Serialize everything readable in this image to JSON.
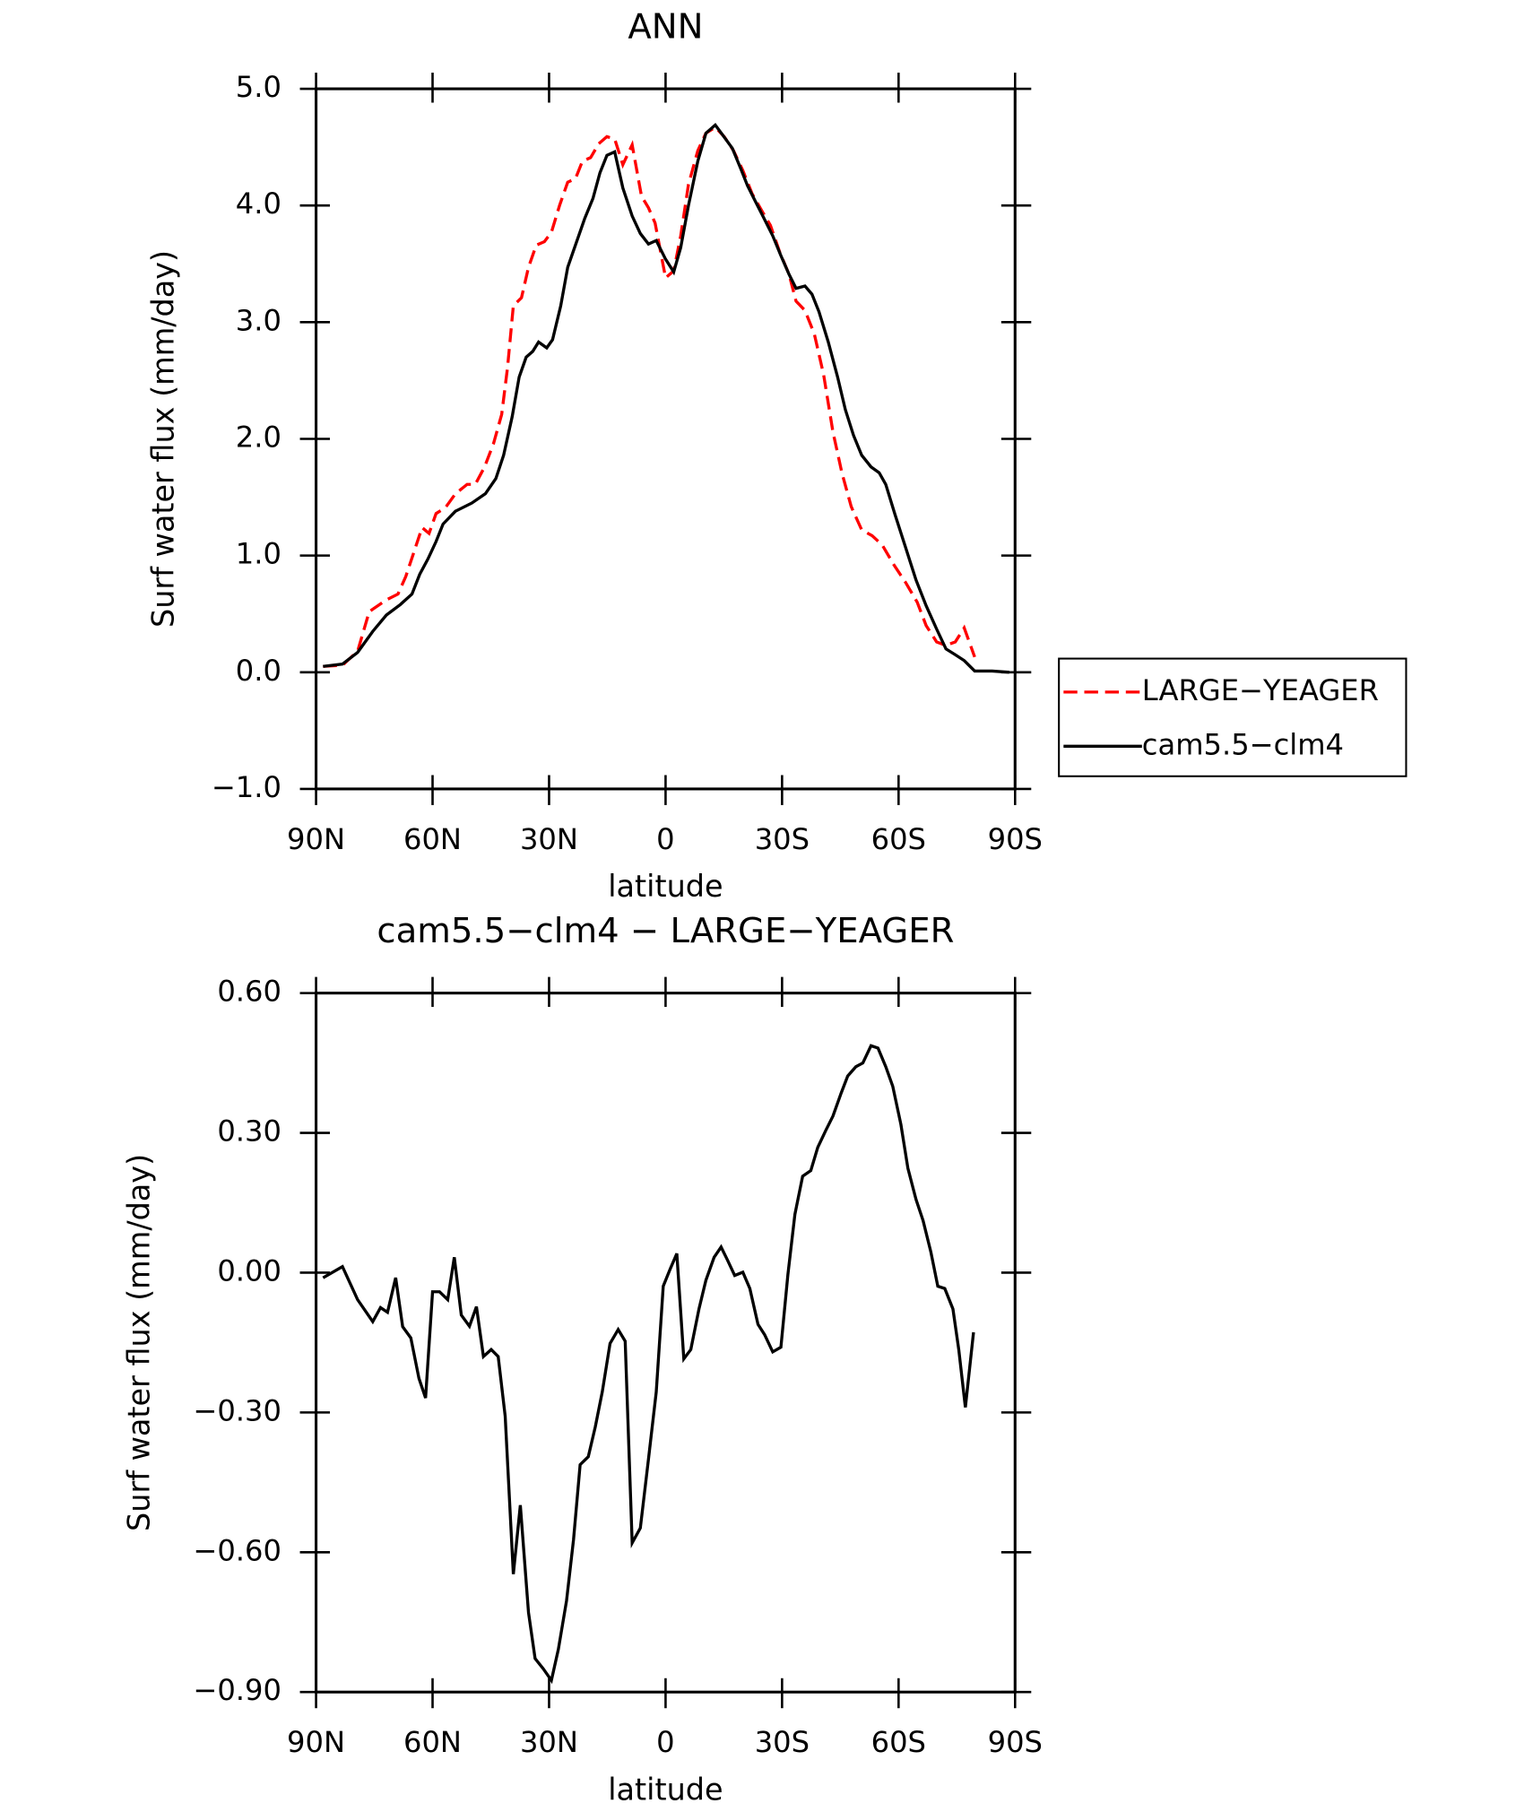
{
  "chart_data": [
    {
      "type": "line",
      "title": "ANN",
      "xlabel": "latitude",
      "ylabel": "Surf water flux (mm/day)",
      "xlim": [
        90,
        -90
      ],
      "xticks": [
        {
          "value": 90,
          "label": "90N"
        },
        {
          "value": 60,
          "label": "60N"
        },
        {
          "value": 30,
          "label": "30N"
        },
        0,
        {
          "value": -30,
          "label": "30S"
        },
        {
          "value": -60,
          "label": "60S"
        },
        {
          "value": -90,
          "label": "90S"
        }
      ],
      "ylim": [
        -1,
        5
      ],
      "yticks": [
        {
          "value": -1,
          "label": "−1.0"
        },
        {
          "value": 0,
          "label": "0.0"
        },
        {
          "value": 1,
          "label": "1.0"
        },
        {
          "value": 2,
          "label": "2.0"
        },
        {
          "value": 3,
          "label": "3.0"
        },
        {
          "value": 4,
          "label": "4.0"
        },
        {
          "value": 5,
          "label": "5.0"
        }
      ],
      "legend": "right",
      "series": [
        {
          "name": "LARGE−YEAGER",
          "color": "#ff0000",
          "dashed": true,
          "x": [
            88.2,
            83.2,
            79.3,
            76.3,
            71.9,
            68.9,
            66.9,
            65.0,
            62.7,
            60.9,
            59.1,
            56.7,
            54.1,
            51.1,
            49.0,
            46.6,
            44.3,
            42.2,
            40.7,
            39.2,
            37.1,
            35.3,
            33.3,
            31.2,
            29.4,
            27.3,
            25.2,
            23.2,
            21.4,
            19.3,
            17.2,
            15.1,
            13.1,
            11.0,
            8.6,
            6.2,
            4.4,
            2.7,
            0,
            -2.1,
            -3.9,
            -5.9,
            -8.3,
            -10.4,
            -12.8,
            -15.1,
            -17.5,
            -19.9,
            -22.3,
            -24.7,
            -27.0,
            -29.4,
            -31.8,
            -33.6,
            -35.9,
            -38.3,
            -40.7,
            -43.1,
            -45.4,
            -47.8,
            -50.5,
            -53.2,
            -55.8,
            -58.8,
            -61.8,
            -64.8,
            -67.1,
            -69.8,
            -72.2,
            -74.6,
            -76.9,
            -79.6
          ],
          "values": [
            0.05,
            0.06,
            0.18,
            0.52,
            0.62,
            0.67,
            0.82,
            1.01,
            1.24,
            1.19,
            1.36,
            1.41,
            1.53,
            1.61,
            1.61,
            1.76,
            1.96,
            2.21,
            2.61,
            3.14,
            3.21,
            3.47,
            3.66,
            3.69,
            3.77,
            4.0,
            4.2,
            4.23,
            4.38,
            4.41,
            4.53,
            4.59,
            4.57,
            4.35,
            4.52,
            4.08,
            3.98,
            3.85,
            3.38,
            3.44,
            3.74,
            4.18,
            4.47,
            4.62,
            4.67,
            4.59,
            4.47,
            4.3,
            4.1,
            3.96,
            3.83,
            3.6,
            3.41,
            3.18,
            3.1,
            2.9,
            2.55,
            2.06,
            1.71,
            1.42,
            1.22,
            1.17,
            1.09,
            0.92,
            0.77,
            0.6,
            0.4,
            0.26,
            0.23,
            0.26,
            0.38,
            0.13
          ]
        },
        {
          "name": "cam5.5−clm4",
          "color": "#000000",
          "dashed": false,
          "x": [
            88.2,
            83.2,
            79.3,
            75.4,
            71.9,
            68.3,
            65.3,
            63.3,
            61.2,
            59.1,
            57.3,
            54.1,
            49.9,
            46.4,
            43.7,
            41.7,
            39.5,
            37.7,
            35.9,
            34.2,
            32.7,
            30.6,
            29.1,
            27.0,
            25.2,
            22.9,
            20.8,
            18.7,
            16.9,
            15.1,
            13.1,
            11.0,
            8.6,
            6.5,
            4.4,
            2.4,
            0,
            -2.1,
            -3.9,
            -5.9,
            -8.3,
            -10.4,
            -12.8,
            -14.8,
            -17.2,
            -19.3,
            -21.1,
            -23.2,
            -25.2,
            -27.6,
            -29.7,
            -31.8,
            -33.6,
            -35.9,
            -37.7,
            -39.5,
            -41.9,
            -44.3,
            -46.3,
            -48.4,
            -50.5,
            -52.9,
            -55.0,
            -56.7,
            -59.1,
            -61.8,
            -64.5,
            -67.1,
            -69.8,
            -72.2,
            -74.6,
            -76.9,
            -79.6,
            -84.1,
            -88.5
          ],
          "values": [
            0.05,
            0.07,
            0.17,
            0.35,
            0.49,
            0.58,
            0.67,
            0.84,
            0.97,
            1.12,
            1.27,
            1.38,
            1.45,
            1.53,
            1.66,
            1.86,
            2.19,
            2.53,
            2.7,
            2.75,
            2.83,
            2.78,
            2.85,
            3.14,
            3.47,
            3.69,
            3.89,
            4.06,
            4.28,
            4.43,
            4.46,
            4.15,
            3.91,
            3.76,
            3.67,
            3.7,
            3.54,
            3.43,
            3.64,
            4.0,
            4.38,
            4.62,
            4.69,
            4.6,
            4.49,
            4.32,
            4.17,
            4.03,
            3.9,
            3.74,
            3.57,
            3.41,
            3.29,
            3.31,
            3.24,
            3.09,
            2.83,
            2.53,
            2.25,
            2.03,
            1.86,
            1.76,
            1.71,
            1.61,
            1.35,
            1.07,
            0.79,
            0.57,
            0.37,
            0.2,
            0.15,
            0.1,
            0.01,
            0.01,
            0.0
          ]
        }
      ]
    },
    {
      "type": "line",
      "title": "cam5.5−clm4 − LARGE−YEAGER",
      "xlabel": "latitude",
      "ylabel": "Surf water flux (mm/day)",
      "xlim": [
        90,
        -90
      ],
      "xticks": [
        {
          "value": 90,
          "label": "90N"
        },
        {
          "value": 60,
          "label": "60N"
        },
        {
          "value": 30,
          "label": "30N"
        },
        0,
        {
          "value": -30,
          "label": "30S"
        },
        {
          "value": -60,
          "label": "60S"
        },
        {
          "value": -90,
          "label": "90S"
        }
      ],
      "ylim": [
        -0.9,
        0.6
      ],
      "yticks": [
        {
          "value": -0.9,
          "label": "−0.90"
        },
        {
          "value": -0.6,
          "label": "−0.60"
        },
        {
          "value": -0.3,
          "label": "−0.30"
        },
        {
          "value": 0,
          "label": "0.00"
        },
        {
          "value": 0.3,
          "label": "0.30"
        },
        {
          "value": 0.6,
          "label": "0.60"
        }
      ],
      "color": "#000000",
      "x": [
        88.2,
        83.2,
        79.3,
        75.4,
        73.4,
        71.6,
        69.5,
        67.7,
        65.6,
        63.5,
        61.8,
        60.0,
        58.2,
        56.1,
        54.4,
        52.6,
        50.5,
        48.7,
        46.9,
        44.9,
        43.1,
        41.3,
        39.2,
        37.4,
        35.3,
        33.6,
        31.5,
        29.4,
        27.6,
        25.5,
        23.7,
        22.0,
        19.9,
        18.1,
        16.3,
        14.3,
        12.2,
        10.4,
        8.6,
        6.5,
        4.4,
        2.4,
        0.6,
        -1.2,
        -2.9,
        -4.7,
        -6.5,
        -8.6,
        -10.4,
        -12.5,
        -14.3,
        -16.0,
        -17.8,
        -19.9,
        -21.7,
        -23.8,
        -25.5,
        -27.6,
        -29.7,
        -31.5,
        -33.3,
        -35.3,
        -37.4,
        -39.2,
        -41.3,
        -43.1,
        -45.2,
        -46.9,
        -49.0,
        -50.8,
        -52.9,
        -54.7,
        -56.7,
        -58.5,
        -60.6,
        -62.4,
        -64.5,
        -66.3,
        -68.3,
        -70.1,
        -71.9,
        -74.0,
        -75.5,
        -77.2,
        -79.3
      ],
      "values": [
        -0.011,
        0.013,
        -0.058,
        -0.105,
        -0.075,
        -0.085,
        -0.011,
        -0.116,
        -0.14,
        -0.227,
        -0.269,
        -0.041,
        -0.041,
        -0.058,
        0.033,
        -0.091,
        -0.115,
        -0.073,
        -0.18,
        -0.165,
        -0.18,
        -0.308,
        -0.647,
        -0.499,
        -0.729,
        -0.828,
        -0.85,
        -0.875,
        -0.808,
        -0.704,
        -0.573,
        -0.412,
        -0.395,
        -0.331,
        -0.256,
        -0.152,
        -0.122,
        -0.147,
        -0.58,
        -0.548,
        -0.4,
        -0.256,
        -0.029,
        0.008,
        0.041,
        -0.185,
        -0.165,
        -0.078,
        -0.016,
        0.033,
        0.055,
        0.026,
        -0.006,
        0.001,
        -0.034,
        -0.111,
        -0.133,
        -0.17,
        -0.16,
        -0.004,
        0.125,
        0.207,
        0.219,
        0.269,
        0.306,
        0.336,
        0.385,
        0.422,
        0.442,
        0.45,
        0.487,
        0.482,
        0.442,
        0.4,
        0.318,
        0.224,
        0.157,
        0.112,
        0.045,
        -0.029,
        -0.034,
        -0.078,
        -0.165,
        -0.289,
        -0.128
      ]
    }
  ]
}
